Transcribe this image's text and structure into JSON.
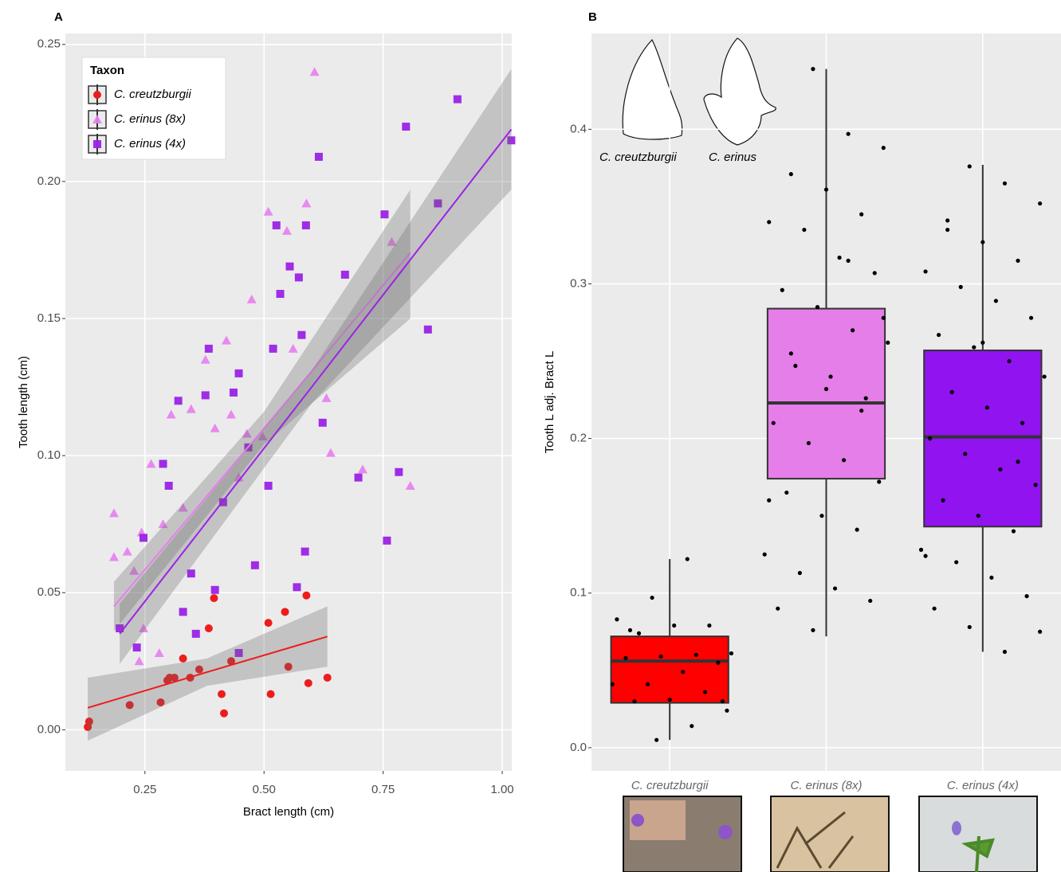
{
  "chart_data": [
    {
      "type": "scatter",
      "panel": "A",
      "x_label": "Bract length (cm)",
      "y_label": "Tooth length (cm)",
      "legend_title": "Taxon",
      "legend_position": "top-left",
      "xlim": [
        0.083,
        1.02
      ],
      "ylim": [
        -0.015,
        0.254
      ],
      "xticks": [
        {
          "value": 0.25,
          "label": "0.25"
        },
        {
          "value": 0.5,
          "label": "0.50"
        },
        {
          "value": 0.75,
          "label": "0.75"
        },
        {
          "value": 1,
          "label": "1.00"
        }
      ],
      "yticks": [
        {
          "value": 0,
          "label": "0.00"
        },
        0.05,
        {
          "value": 0.1,
          "label": "0.10"
        },
        0.15,
        {
          "value": 0.2,
          "label": "0.20"
        },
        0.25
      ],
      "grid": true,
      "series": [
        {
          "name": "C. creutzburgii",
          "color": "#ee1c1c",
          "marker": "circle",
          "x": [
            0.13,
            0.133,
            0.218,
            0.283,
            0.297,
            0.302,
            0.312,
            0.33,
            0.345,
            0.364,
            0.384,
            0.395,
            0.411,
            0.416,
            0.431,
            0.509,
            0.514,
            0.544,
            0.551,
            0.589,
            0.593,
            0.633
          ],
          "values": [
            0.001,
            0.003,
            0.009,
            0.01,
            0.018,
            0.019,
            0.019,
            0.026,
            0.019,
            0.022,
            0.037,
            0.048,
            0.013,
            0.006,
            0.025,
            0.039,
            0.013,
            0.043,
            0.023,
            0.049,
            0.017,
            0.019
          ],
          "fit": {
            "x": [
              0.13,
              0.38,
              0.633
            ],
            "values": [
              0.008,
              0.021,
              0.034
            ],
            "lower": [
              -0.004,
              0.016,
              0.023
            ],
            "upper": [
              0.019,
              0.026,
              0.045
            ]
          }
        },
        {
          "name": "C. erinus (8x)",
          "color": "#e77ef0",
          "marker": "triangle",
          "x": [
            0.185,
            0.185,
            0.213,
            0.227,
            0.243,
            0.263,
            0.288,
            0.305,
            0.33,
            0.347,
            0.377,
            0.397,
            0.421,
            0.431,
            0.447,
            0.464,
            0.474,
            0.497,
            0.509,
            0.548,
            0.561,
            0.589,
            0.606,
            0.631,
            0.64,
            0.707,
            0.768,
            0.807,
            0.247,
            0.28,
            0.238
          ],
          "values": [
            0.079,
            0.063,
            0.065,
            0.058,
            0.072,
            0.097,
            0.075,
            0.115,
            0.081,
            0.117,
            0.135,
            0.11,
            0.142,
            0.115,
            0.092,
            0.108,
            0.157,
            0.107,
            0.189,
            0.182,
            0.139,
            0.192,
            0.24,
            0.121,
            0.101,
            0.095,
            0.178,
            0.089,
            0.037,
            0.028,
            0.025
          ],
          "fit": {
            "x": [
              0.185,
              0.5,
              0.807
            ],
            "values": [
              0.045,
              0.11,
              0.174
            ],
            "lower": [
              0.036,
              0.104,
              0.15
            ],
            "upper": [
              0.054,
              0.116,
              0.197
            ]
          }
        },
        {
          "name": "C. erinus (4x)",
          "color": "#9b22e6",
          "marker": "square",
          "x": [
            0.197,
            0.233,
            0.247,
            0.288,
            0.3,
            0.32,
            0.33,
            0.347,
            0.357,
            0.377,
            0.384,
            0.397,
            0.414,
            0.436,
            0.447,
            0.467,
            0.481,
            0.509,
            0.519,
            0.526,
            0.534,
            0.554,
            0.573,
            0.579,
            0.588,
            0.615,
            0.623,
            0.67,
            0.698,
            0.753,
            0.758,
            0.783,
            0.798,
            0.844,
            0.865,
            0.906,
            1.019,
            0.569,
            0.586,
            0.447
          ],
          "values": [
            0.037,
            0.03,
            0.07,
            0.097,
            0.089,
            0.12,
            0.043,
            0.057,
            0.035,
            0.122,
            0.139,
            0.051,
            0.083,
            0.123,
            0.13,
            0.103,
            0.06,
            0.089,
            0.139,
            0.184,
            0.159,
            0.169,
            0.165,
            0.144,
            0.184,
            0.209,
            0.112,
            0.166,
            0.092,
            0.188,
            0.069,
            0.094,
            0.22,
            0.146,
            0.192,
            0.23,
            0.215,
            0.052,
            0.065,
            0.028
          ],
          "fit": {
            "x": [
              0.197,
              0.6,
              1.019
            ],
            "values": [
              0.035,
              0.125,
              0.219
            ],
            "lower": [
              0.024,
              0.119,
              0.197
            ],
            "upper": [
              0.046,
              0.131,
              0.241
            ]
          }
        }
      ]
    },
    {
      "type": "box",
      "panel": "B",
      "y_label": "Tooth L adj. Bract L",
      "inset_labels": [
        "C. creutzburgii",
        "C. erinus"
      ],
      "ylim": [
        -0.015,
        0.462
      ],
      "yticks": [
        {
          "value": 0,
          "label": "0.0"
        },
        0.1,
        0.2,
        0.3,
        0.4
      ],
      "grid": true,
      "categories": [
        "C. creutzburgii",
        "C. erinus (8x)",
        "C. erinus (4x)"
      ],
      "boxes": [
        {
          "color": "#ff0000",
          "whisker_low": 0.005,
          "q1": 0.029,
          "median": 0.056,
          "q3": 0.072,
          "whisker_high": 0.122,
          "points": [
            0.005,
            0.014,
            0.024,
            0.03,
            0.031,
            0.036,
            0.041,
            0.041,
            0.049,
            0.055,
            0.058,
            0.059,
            0.06,
            0.061,
            0.074,
            0.079,
            0.079,
            0.083,
            0.097,
            0.122,
            0.03,
            0.076
          ]
        },
        {
          "color": "#e57ee8",
          "whisker_low": 0.072,
          "q1": 0.174,
          "median": 0.223,
          "q3": 0.284,
          "whisker_high": 0.439,
          "points": [
            0.439,
            0.397,
            0.388,
            0.371,
            0.361,
            0.345,
            0.34,
            0.335,
            0.317,
            0.307,
            0.296,
            0.285,
            0.27,
            0.262,
            0.247,
            0.24,
            0.226,
            0.21,
            0.197,
            0.186,
            0.172,
            0.165,
            0.15,
            0.141,
            0.125,
            0.113,
            0.103,
            0.095,
            0.09,
            0.076,
            0.315,
            0.278,
            0.255,
            0.232,
            0.218,
            0.16
          ]
        },
        {
          "color": "#9013f0",
          "whisker_low": 0.062,
          "q1": 0.143,
          "median": 0.201,
          "q3": 0.257,
          "whisker_high": 0.377,
          "points": [
            0.376,
            0.365,
            0.352,
            0.341,
            0.327,
            0.315,
            0.308,
            0.298,
            0.289,
            0.278,
            0.267,
            0.259,
            0.25,
            0.24,
            0.23,
            0.22,
            0.21,
            0.2,
            0.19,
            0.18,
            0.17,
            0.16,
            0.15,
            0.14,
            0.128,
            0.12,
            0.11,
            0.098,
            0.09,
            0.078,
            0.062,
            0.075,
            0.335,
            0.262,
            0.185,
            0.124
          ]
        }
      ]
    }
  ]
}
